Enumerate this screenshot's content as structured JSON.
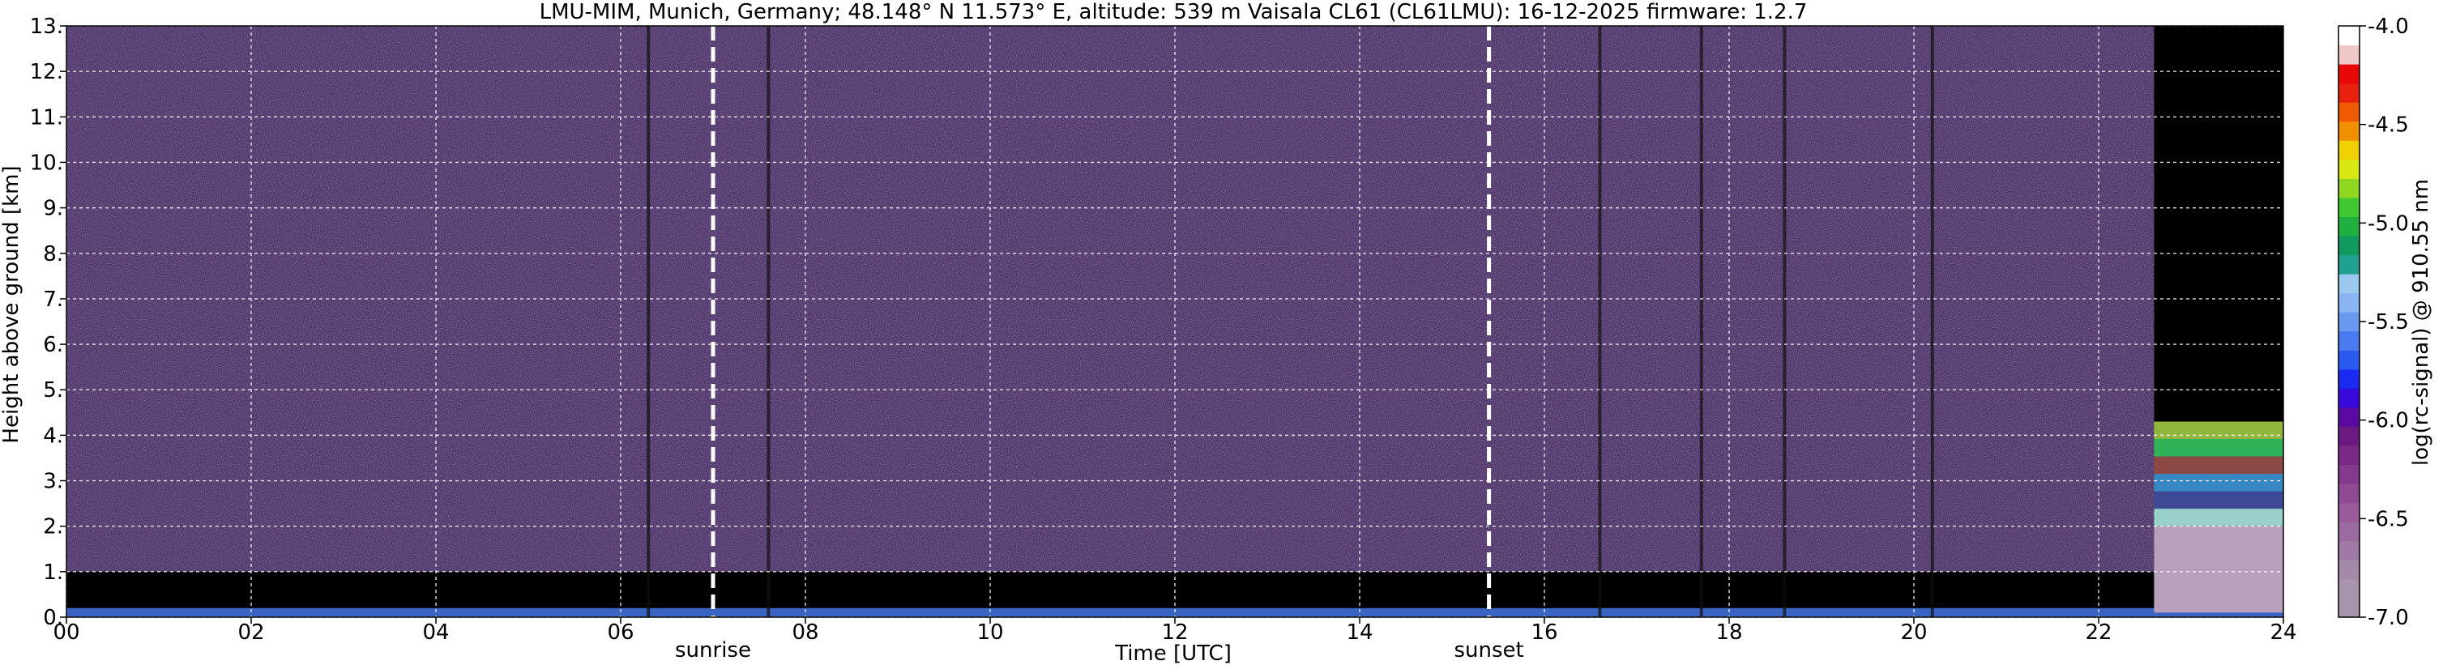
{
  "chart_data": {
    "type": "heatmap",
    "title": "LMU-MIM, Munich, Germany; 48.148° N 11.573° E, altitude: 539 m    Vaisala CL61 (CL61LMU): 16-12-2025    firmware: 1.2.7",
    "xlabel": "Time [UTC]",
    "ylabel": "Height above ground [km]",
    "xlim": [
      0,
      24
    ],
    "ylim": [
      0,
      13
    ],
    "x_ticks": [
      0,
      2,
      4,
      6,
      8,
      10,
      12,
      14,
      16,
      18,
      20,
      22,
      24
    ],
    "x_tick_labels": [
      "00",
      "02",
      "04",
      "06",
      "08",
      "10",
      "12",
      "14",
      "16",
      "18",
      "20",
      "22",
      "24"
    ],
    "y_ticks": [
      0,
      1,
      2,
      3,
      4,
      5,
      6,
      7,
      8,
      9,
      10,
      11,
      12,
      13
    ],
    "y_tick_labels": [
      "0.",
      "1.",
      "2.",
      "3.",
      "4.",
      "5.",
      "6.",
      "7.",
      "8.",
      "9.",
      "10.",
      "11.",
      "12.",
      "13."
    ],
    "grid": true,
    "annotations": [
      {
        "text": "sunrise",
        "x": 7.0
      },
      {
        "text": "sunset",
        "x": 15.4
      }
    ],
    "colorbar": {
      "label": "log(rc-signal) @ 910.55 nm",
      "range": [
        -7.0,
        -4.0
      ],
      "ticks": [
        -4.0,
        -4.5,
        -5.0,
        -5.5,
        -6.0,
        -6.5,
        -7.0
      ],
      "tick_labels": [
        "-4.0",
        "-4.5",
        "-5.0",
        "-5.5",
        "-6.0",
        "-6.5",
        "-7.0"
      ],
      "colors": [
        "#a894ac",
        "#a894ac",
        "#a38aa9",
        "#9e7aa4",
        "#9a6aa0",
        "#9a5a9c",
        "#8e4a92",
        "#843a8c",
        "#7a2a86",
        "#6a1a80",
        "#5a0aa0",
        "#3a0adc",
        "#1a2af0",
        "#2a5af0",
        "#4a7af0",
        "#6a9af0",
        "#8ab4f4",
        "#9ac8ee",
        "#20a090",
        "#109a60",
        "#20b040",
        "#40c830",
        "#90d820",
        "#d8e810",
        "#f0d000",
        "#f09000",
        "#f05a00",
        "#e82010",
        "#e80808",
        "#f0c8c8",
        "#ffffff"
      ]
    },
    "regions": [
      {
        "name": "noise background",
        "x_range": [
          0,
          22.6
        ],
        "y_range": [
          1.0,
          13
        ],
        "value_range": [
          -7.0,
          -5.8
        ]
      },
      {
        "name": "low-level black band",
        "x_range": [
          0,
          22.6
        ],
        "y_range": [
          0.2,
          1.0
        ],
        "value": -7.0
      },
      {
        "name": "surface layer",
        "x_range": [
          0,
          24
        ],
        "y_range": [
          0,
          0.2
        ],
        "value_range": [
          -6.5,
          -4.5
        ]
      },
      {
        "name": "cloud layer",
        "x_range": [
          22.6,
          24
        ],
        "y_range": [
          2.0,
          4.3
        ],
        "value_range": [
          -6.5,
          -4.2
        ]
      },
      {
        "name": "low layer",
        "x_range": [
          22.6,
          24
        ],
        "y_range": [
          0.1,
          2.0
        ],
        "value_range": [
          -7.0,
          -6.3
        ]
      }
    ],
    "vertical_artifacts": [
      6.3,
      7.6,
      16.6,
      17.7,
      18.6,
      20.2
    ]
  }
}
